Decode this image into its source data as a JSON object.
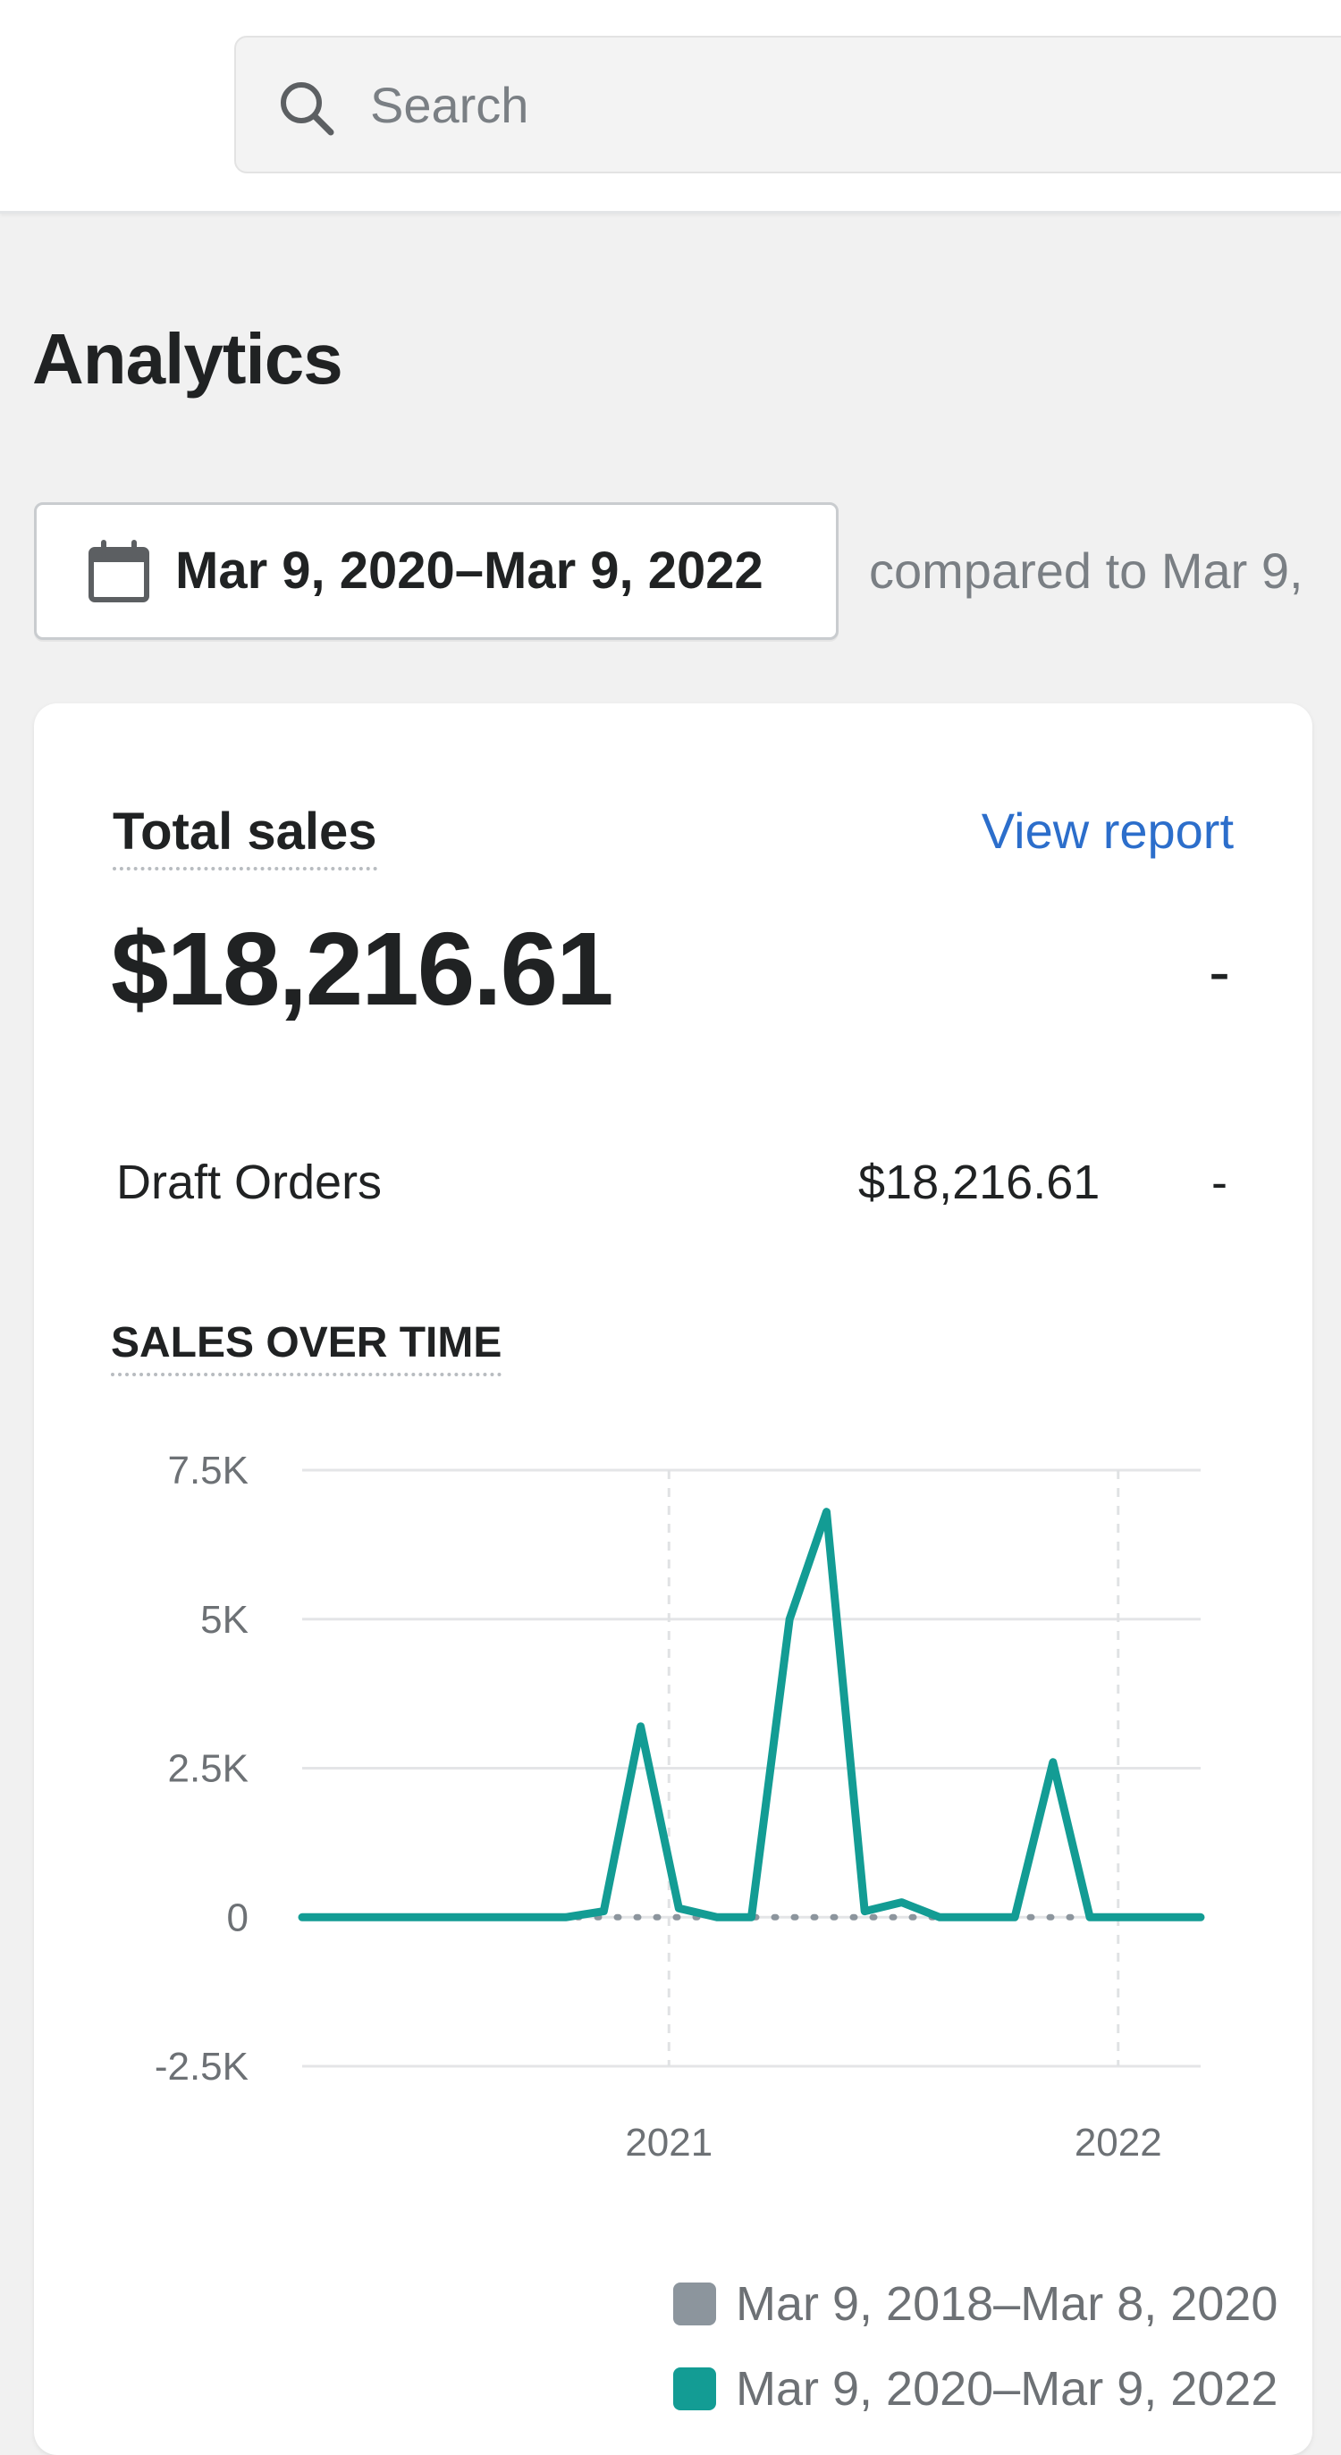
{
  "search": {
    "placeholder": "Search",
    "icon": "search-icon"
  },
  "page": {
    "title": "Analytics"
  },
  "date_range": {
    "label": "Mar 9, 2020–Mar 9, 2022",
    "icon": "calendar-icon",
    "compare_text": "compared to Mar 9,"
  },
  "card": {
    "title": "Total sales",
    "view_report": "View report",
    "total_value": "$18,216.61",
    "total_change": "-",
    "breakdown": {
      "label": "Draft Orders",
      "value": "$18,216.61",
      "change": "-"
    },
    "section_title": "SALES OVER TIME"
  },
  "colors": {
    "current_series": "#139c94",
    "previous_series": "#8c959d",
    "link": "#2c6ecb"
  },
  "chart_data": {
    "type": "line",
    "title": "SALES OVER TIME",
    "y_tick_labels": [
      "7.5K",
      "5K",
      "2.5K",
      "0",
      "-2.5K"
    ],
    "y_ticks": [
      7500,
      5000,
      2500,
      0,
      -2500
    ],
    "ylim": [
      -2500,
      7500
    ],
    "x_tick_labels": [
      "2021",
      "2022"
    ],
    "x_ticks": [
      "2021-01-01",
      "2022-01-01"
    ],
    "xlim": [
      "2020-03-09",
      "2022-03-09"
    ],
    "grid": true,
    "legend_position": "bottom-right",
    "series": [
      {
        "name": "Mar 9, 2018–Mar 8, 2020",
        "color": "#8c959d",
        "style": "dotted",
        "points": [
          [
            "2020-03-09",
            0
          ],
          [
            "2020-12-01",
            0
          ],
          [
            "2021-06-01",
            0
          ],
          [
            "2021-12-01",
            0
          ],
          [
            "2022-03-09",
            0
          ]
        ]
      },
      {
        "name": "Mar 9, 2020–Mar 9, 2022",
        "color": "#139c94",
        "style": "solid",
        "points": [
          [
            "2020-03-09",
            0
          ],
          [
            "2020-04-09",
            0
          ],
          [
            "2020-05-09",
            0
          ],
          [
            "2020-06-09",
            0
          ],
          [
            "2020-07-09",
            0
          ],
          [
            "2020-08-09",
            0
          ],
          [
            "2020-09-09",
            0
          ],
          [
            "2020-10-09",
            0
          ],
          [
            "2020-11-09",
            100
          ],
          [
            "2020-12-09",
            3200
          ],
          [
            "2021-01-09",
            150
          ],
          [
            "2021-02-09",
            0
          ],
          [
            "2021-03-09",
            0
          ],
          [
            "2021-04-09",
            5000
          ],
          [
            "2021-05-09",
            6800
          ],
          [
            "2021-06-09",
            100
          ],
          [
            "2021-07-09",
            250
          ],
          [
            "2021-08-09",
            0
          ],
          [
            "2021-09-09",
            0
          ],
          [
            "2021-10-09",
            0
          ],
          [
            "2021-11-09",
            2600
          ],
          [
            "2021-12-09",
            0
          ],
          [
            "2022-01-09",
            0
          ],
          [
            "2022-02-09",
            0
          ],
          [
            "2022-03-09",
            0
          ]
        ]
      }
    ]
  }
}
